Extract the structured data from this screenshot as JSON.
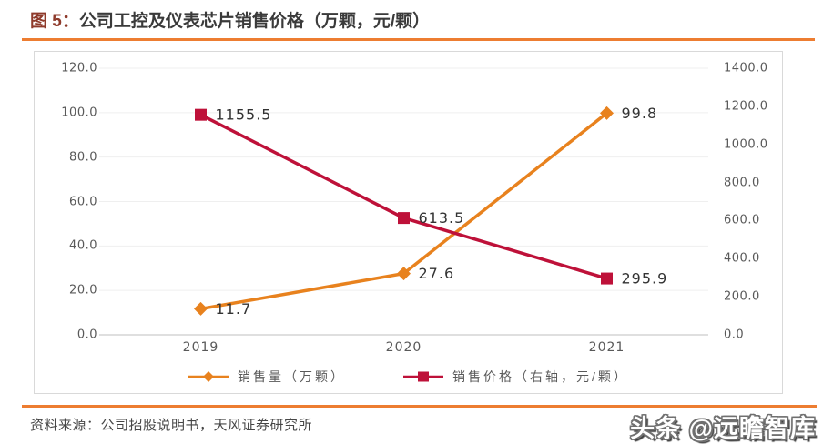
{
  "header": {
    "figure_label": "图 5：",
    "title": "公司工控及仪表芯片销售价格（万颗，元/颗）"
  },
  "chart_data": {
    "type": "line",
    "categories": [
      "2019",
      "2020",
      "2021"
    ],
    "series": [
      {
        "name": "销售量（万颗）",
        "axis": "left",
        "marker": "diamond",
        "color": "#E8821E",
        "values": [
          11.7,
          27.6,
          99.8
        ],
        "data_labels": [
          "11.7",
          "27.6",
          "99.8"
        ]
      },
      {
        "name": "销售价格（右轴，元/颗）",
        "axis": "right",
        "marker": "square",
        "color": "#BE1139",
        "values": [
          1155.5,
          613.5,
          295.9
        ],
        "data_labels": [
          "1155.5",
          "613.5",
          "295.9"
        ]
      }
    ],
    "left_axis": {
      "min": 0,
      "max": 120,
      "ticks": [
        "120.0",
        "100.0",
        "80.0",
        "60.0",
        "40.0",
        "20.0",
        "0.0"
      ]
    },
    "right_axis": {
      "min": 0,
      "max": 1400,
      "ticks": [
        "1400.0",
        "1200.0",
        "1000.0",
        "800.0",
        "600.0",
        "400.0",
        "200.0",
        "0.0"
      ]
    },
    "legend_position": "bottom",
    "grid": true
  },
  "footer": {
    "source": "资料来源：公司招股说明书，天风证券研究所",
    "watermark": "头条 @远瞻智库"
  },
  "colors": {
    "rule_orange": "#ED7D31",
    "title_prefix": "#8E3A2B",
    "title_text": "#3A3A3A",
    "axis_text": "#595959",
    "data_label": "#333333",
    "source_text": "#464646",
    "panel_border": "#D9D9D9",
    "gridline": "#EFEFEF",
    "axis_line": "#BFBFBF",
    "watermark_fill": "#FFFFFF",
    "watermark_outline": "#707070"
  }
}
